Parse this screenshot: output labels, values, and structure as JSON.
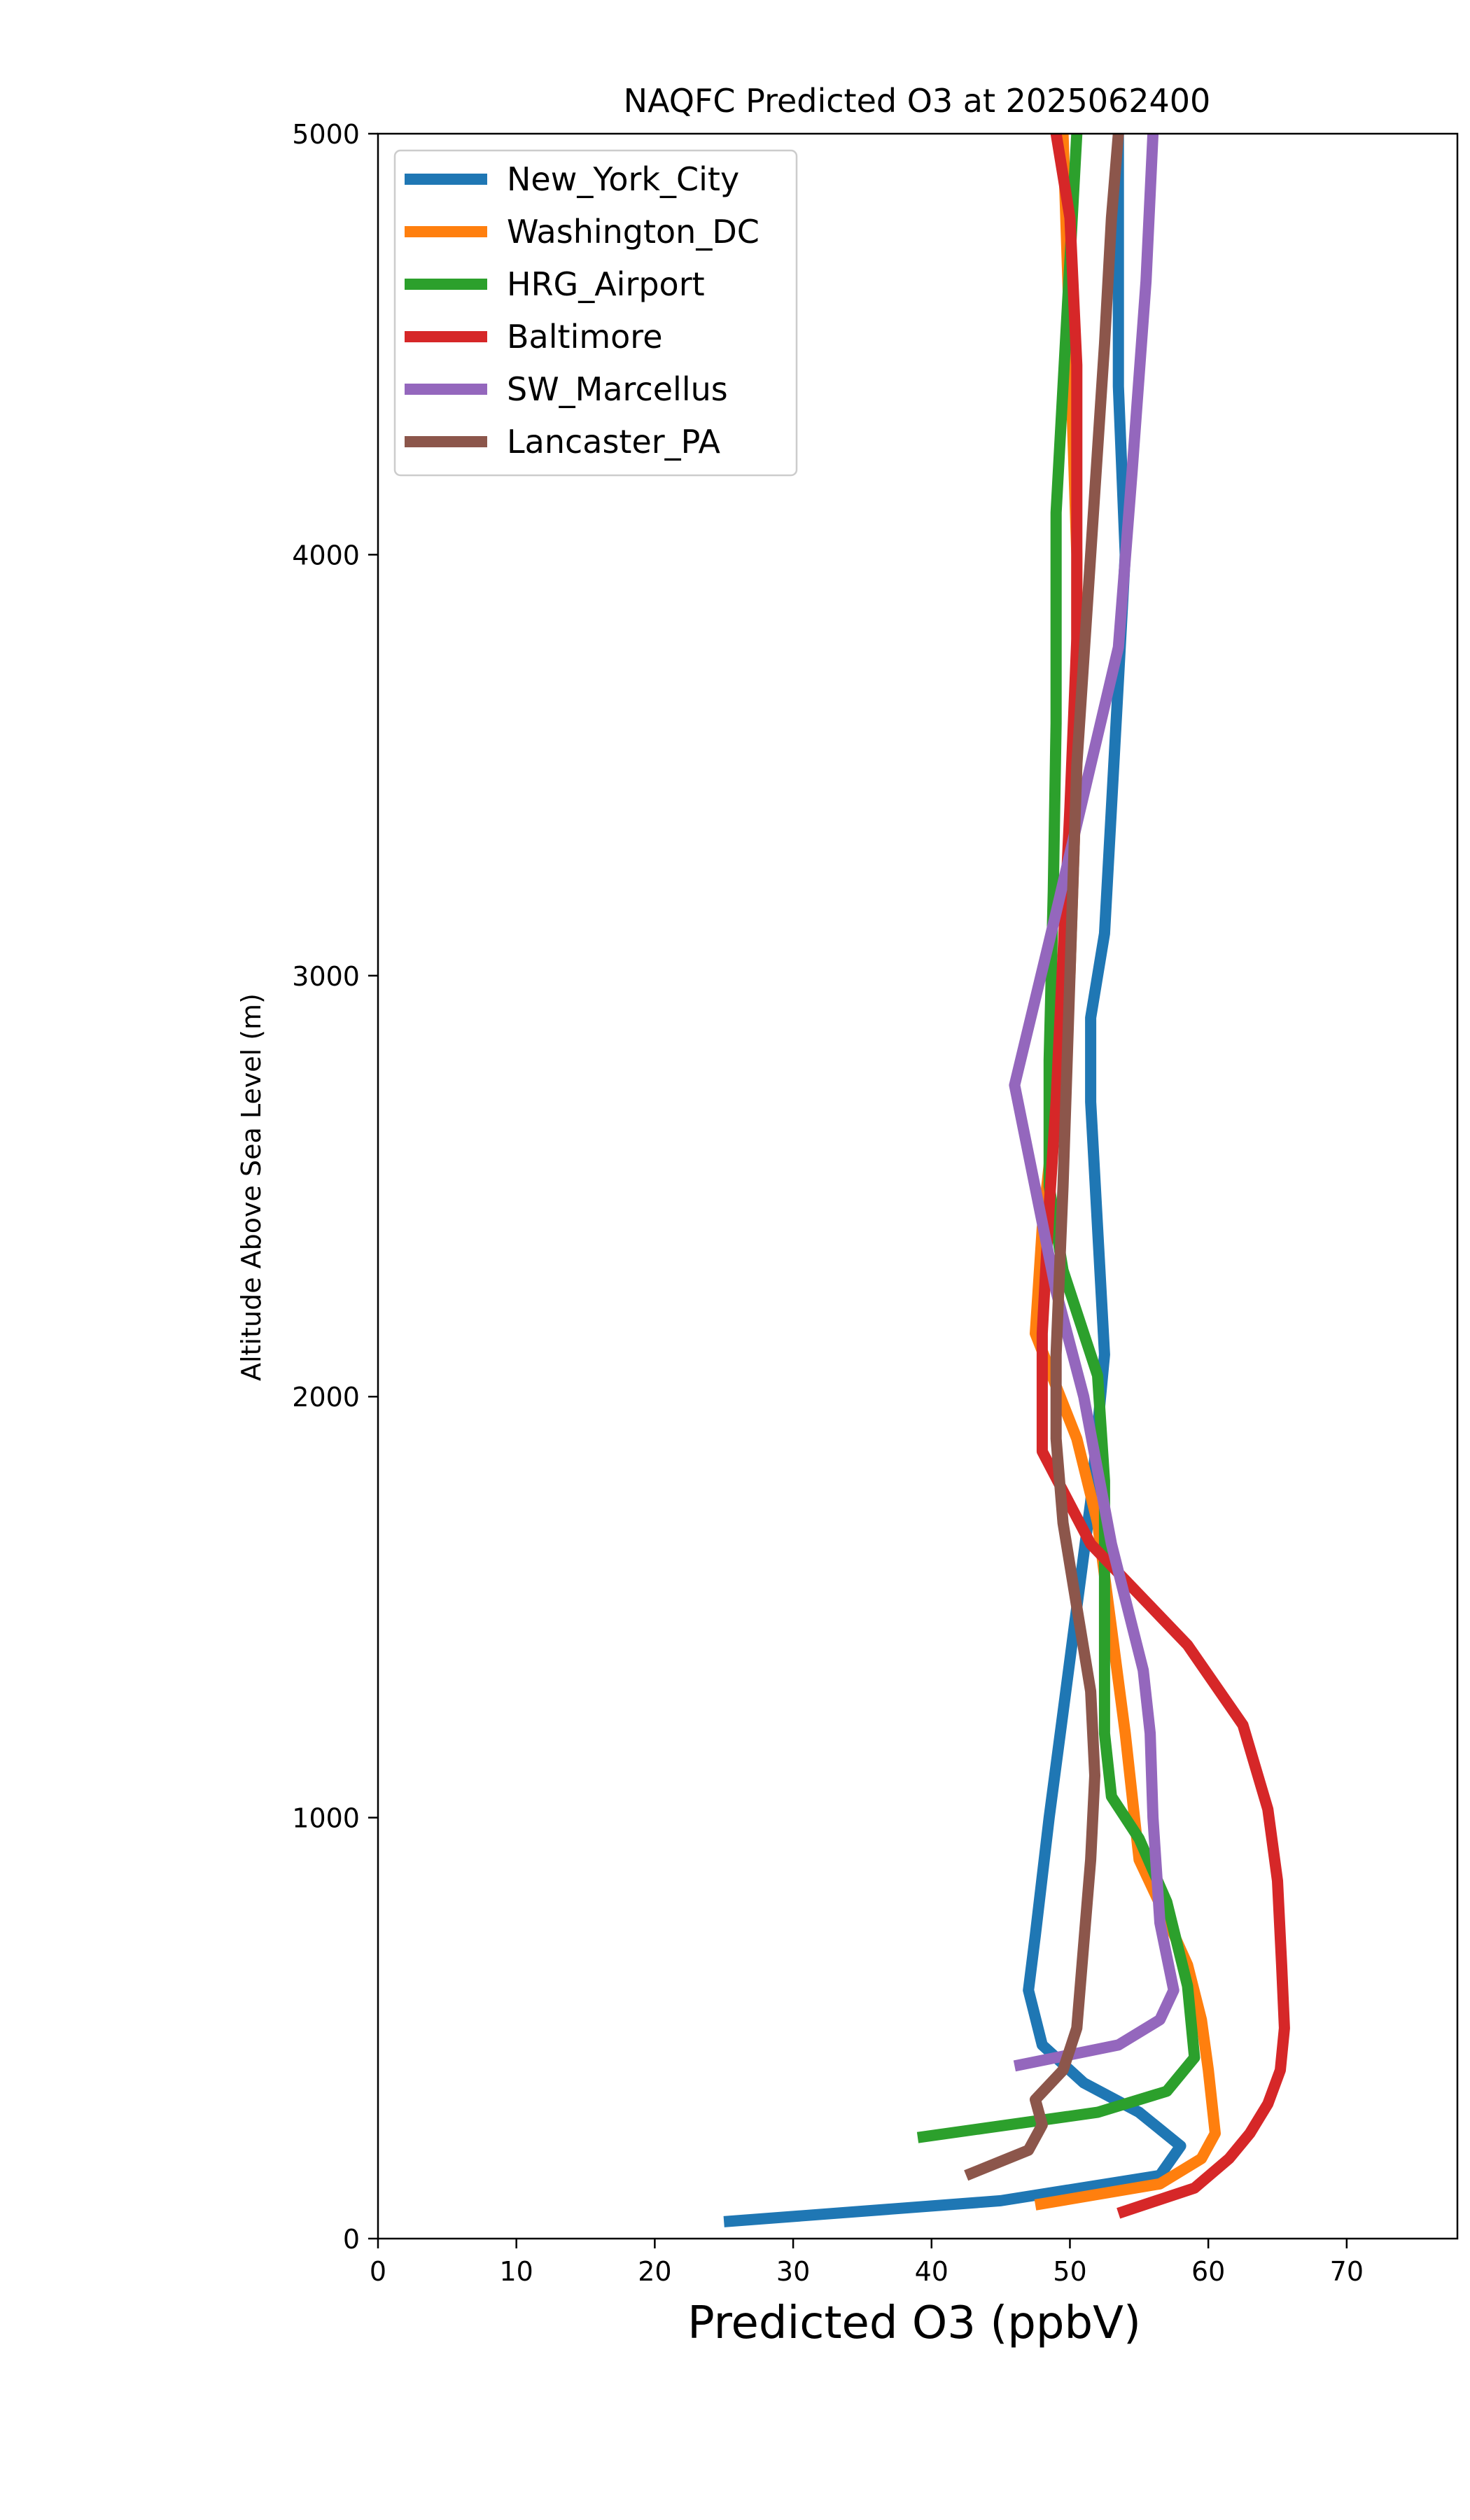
{
  "chart_data": {
    "type": "line",
    "title": "NAQFC Predicted O3 at 2025062400",
    "xlabel": "Predicted O3 (ppbV)",
    "ylabel": "Altitude Above Sea Level (m)",
    "xlim": [
      0,
      78
    ],
    "ylim": [
      0,
      5000
    ],
    "xticks": [
      0,
      10,
      20,
      30,
      40,
      50,
      60,
      70
    ],
    "yticks": [
      0,
      1000,
      2000,
      3000,
      4000,
      5000
    ],
    "grid": false,
    "legend_position": "top-left",
    "series": [
      {
        "name": "New_York_City",
        "color": "#1f77b4",
        "points": [
          [
            25.0,
            40
          ],
          [
            45.0,
            90
          ],
          [
            56.5,
            150
          ],
          [
            58.0,
            220
          ],
          [
            55.0,
            300
          ],
          [
            51.0,
            370
          ],
          [
            48.0,
            460
          ],
          [
            47.0,
            590
          ],
          [
            47.5,
            720
          ],
          [
            48.5,
            1000
          ],
          [
            49.5,
            1250
          ],
          [
            50.5,
            1500
          ],
          [
            51.5,
            1750
          ],
          [
            52.5,
            2100
          ],
          [
            52.0,
            2400
          ],
          [
            51.5,
            2700
          ],
          [
            51.5,
            2900
          ],
          [
            52.5,
            3100
          ],
          [
            53.0,
            3400
          ],
          [
            53.5,
            3700
          ],
          [
            54.0,
            4000
          ],
          [
            53.5,
            4400
          ],
          [
            53.5,
            5000
          ]
        ]
      },
      {
        "name": "Washington_DC",
        "color": "#ff7f0e",
        "points": [
          [
            47.5,
            80
          ],
          [
            56.5,
            130
          ],
          [
            59.5,
            190
          ],
          [
            60.5,
            250
          ],
          [
            60.0,
            400
          ],
          [
            59.5,
            520
          ],
          [
            58.5,
            650
          ],
          [
            57.0,
            760
          ],
          [
            55.0,
            900
          ],
          [
            54.0,
            1200
          ],
          [
            53.0,
            1450
          ],
          [
            52.0,
            1700
          ],
          [
            50.5,
            1900
          ],
          [
            47.5,
            2150
          ],
          [
            48.0,
            2400
          ],
          [
            49.0,
            2700
          ],
          [
            50.0,
            3000
          ],
          [
            50.5,
            3500
          ],
          [
            50.5,
            4000
          ],
          [
            50.0,
            4500
          ],
          [
            49.5,
            5000
          ]
        ]
      },
      {
        "name": "HRG_Airport",
        "color": "#2ca02c",
        "points": [
          [
            39.0,
            240
          ],
          [
            52.0,
            300
          ],
          [
            57.0,
            350
          ],
          [
            59.0,
            430
          ],
          [
            58.5,
            600
          ],
          [
            57.0,
            800
          ],
          [
            55.0,
            950
          ],
          [
            53.0,
            1050
          ],
          [
            52.5,
            1200
          ],
          [
            52.5,
            1500
          ],
          [
            52.5,
            1800
          ],
          [
            52.0,
            2050
          ],
          [
            49.5,
            2300
          ],
          [
            48.5,
            2500
          ],
          [
            48.5,
            2800
          ],
          [
            48.8,
            3200
          ],
          [
            49.0,
            3600
          ],
          [
            49.0,
            4100
          ],
          [
            49.5,
            4400
          ],
          [
            50.0,
            4700
          ],
          [
            50.5,
            5000
          ]
        ]
      },
      {
        "name": "Baltimore",
        "color": "#d62728",
        "points": [
          [
            53.5,
            60
          ],
          [
            59.0,
            120
          ],
          [
            61.5,
            190
          ],
          [
            63.0,
            250
          ],
          [
            64.3,
            320
          ],
          [
            65.2,
            400
          ],
          [
            65.5,
            500
          ],
          [
            65.3,
            650
          ],
          [
            65.0,
            850
          ],
          [
            64.3,
            1020
          ],
          [
            62.5,
            1220
          ],
          [
            58.5,
            1410
          ],
          [
            51.5,
            1650
          ],
          [
            48.0,
            1870
          ],
          [
            48.0,
            2150
          ],
          [
            48.5,
            2450
          ],
          [
            49.0,
            2700
          ],
          [
            49.5,
            3050
          ],
          [
            50.0,
            3400
          ],
          [
            50.5,
            3800
          ],
          [
            50.5,
            4200
          ],
          [
            50.5,
            4450
          ],
          [
            50.0,
            4800
          ],
          [
            49.0,
            5000
          ]
        ]
      },
      {
        "name": "SW_Marcellus",
        "color": "#9467bd",
        "points": [
          [
            46.0,
            410
          ],
          [
            53.5,
            460
          ],
          [
            56.5,
            520
          ],
          [
            57.5,
            590
          ],
          [
            56.5,
            750
          ],
          [
            56.0,
            1000
          ],
          [
            55.8,
            1200
          ],
          [
            55.3,
            1350
          ],
          [
            53.0,
            1650
          ],
          [
            51.0,
            2000
          ],
          [
            49.0,
            2250
          ],
          [
            46.0,
            2740
          ],
          [
            49.0,
            3150
          ],
          [
            51.5,
            3500
          ],
          [
            53.5,
            3780
          ],
          [
            54.5,
            4200
          ],
          [
            55.5,
            4650
          ],
          [
            56.0,
            5000
          ]
        ]
      },
      {
        "name": "Lancaster_PA",
        "color": "#8c564b",
        "points": [
          [
            42.5,
            150
          ],
          [
            47.0,
            210
          ],
          [
            48.0,
            270
          ],
          [
            47.5,
            330
          ],
          [
            49.5,
            400
          ],
          [
            50.5,
            500
          ],
          [
            51.0,
            700
          ],
          [
            51.5,
            900
          ],
          [
            51.8,
            1100
          ],
          [
            51.5,
            1300
          ],
          [
            50.5,
            1500
          ],
          [
            49.5,
            1700
          ],
          [
            49.0,
            1900
          ],
          [
            49.0,
            2100
          ],
          [
            49.5,
            2500
          ],
          [
            50.0,
            3000
          ],
          [
            50.5,
            3500
          ],
          [
            51.5,
            4000
          ],
          [
            52.5,
            4500
          ],
          [
            53.0,
            4800
          ],
          [
            53.5,
            5000
          ]
        ]
      }
    ]
  }
}
